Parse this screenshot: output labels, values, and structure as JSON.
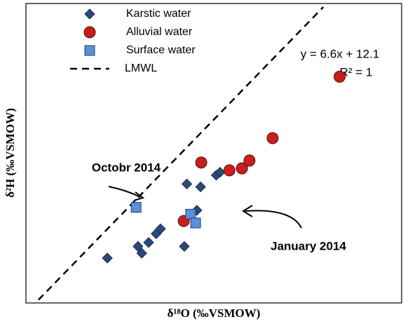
{
  "chart_data": {
    "type": "scatter",
    "x_label": "δ¹⁸O (‰VSMOW)",
    "y_label": "δ²H (‰VSMOW)",
    "xlim": [
      -9,
      -3
    ],
    "ylim": [
      -46.3,
      -15.6
    ],
    "series": [
      {
        "name": "Karstic water",
        "color": "#2b4a7a",
        "marker": "diamond",
        "x": [
          -7.7,
          -7.21,
          -7.15,
          -7.04,
          -6.92,
          -6.85,
          -6.47,
          -6.43,
          -6.21,
          -5.96,
          -5.9,
          -6.27
        ],
        "y": [
          -41.7,
          -40.5,
          -41.2,
          -40.1,
          -39.2,
          -38.7,
          -40.5,
          -34.1,
          -34.4,
          -33.2,
          -32.9,
          -36.8
        ]
      },
      {
        "name": "Alluvial water",
        "color": "#c81e1e",
        "marker": "circle",
        "x": [
          -6.2,
          -6.48,
          -5.75,
          -5.55,
          -5.43,
          -5.06,
          -3.99
        ],
        "y": [
          -31.9,
          -37.9,
          -32.7,
          -32.5,
          -31.7,
          -29.4,
          -23.1
        ]
      },
      {
        "name": "Surface water",
        "color": "#5b8fd6",
        "marker": "square",
        "x": [
          -7.24,
          -6.37,
          -6.29
        ],
        "y": [
          -36.5,
          -37.2,
          -38.1
        ]
      },
      {
        "name": "LMWL",
        "color": "#000000",
        "marker": "dashed-line",
        "x": [
          -8.8,
          -4.25
        ],
        "y": [
          -45.98,
          -15.96
        ]
      }
    ],
    "annotations": [
      "y = 6.6x + 12.1",
      "R² = 1",
      "Octobr 2014",
      "January 2014"
    ],
    "legend": "upper-left"
  }
}
